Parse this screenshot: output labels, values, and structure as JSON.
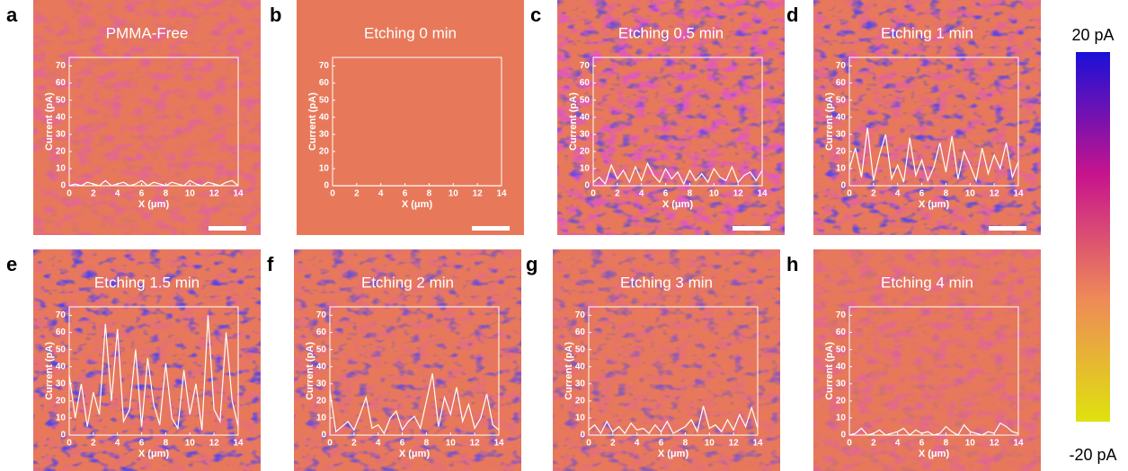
{
  "chart_data": [
    {
      "type": "line",
      "panel_label": "a",
      "title": "PMMA-Free",
      "x_label": "X (μm)",
      "y_label": "Current (pA)",
      "color": "#ffffff",
      "xlim": [
        0,
        14
      ],
      "ylim": [
        0,
        75
      ],
      "xticks": [
        0,
        2,
        4,
        6,
        8,
        10,
        12,
        14
      ],
      "yticks": [
        0,
        10,
        20,
        30,
        40,
        50,
        60,
        70
      ],
      "x": [
        0,
        0.5,
        1,
        1.5,
        2,
        2.5,
        3,
        3.5,
        4,
        4.5,
        5,
        5.5,
        6,
        6.5,
        7,
        7.5,
        8,
        8.5,
        9,
        9.5,
        10,
        10.5,
        11,
        11.5,
        12,
        12.5,
        13,
        13.5,
        14
      ],
      "values": [
        0,
        1,
        0,
        2,
        1,
        0,
        3,
        0,
        1,
        2,
        0,
        1,
        3,
        0,
        2,
        1,
        0,
        2,
        1,
        0,
        3,
        1,
        0,
        2,
        1,
        0,
        2,
        3,
        0
      ]
    },
    {
      "type": "line",
      "panel_label": "b",
      "title": "Etching 0 min",
      "x_label": "X (μm)",
      "y_label": "Current (pA)",
      "color": "#ffffff",
      "xlim": [
        0,
        14
      ],
      "ylim": [
        0,
        75
      ],
      "xticks": [
        0,
        2,
        4,
        6,
        8,
        10,
        12,
        14
      ],
      "yticks": [
        0,
        10,
        20,
        30,
        40,
        50,
        60,
        70
      ],
      "x": [
        0,
        0.5,
        1,
        1.5,
        2,
        2.5,
        3,
        3.5,
        4,
        4.5,
        5,
        5.5,
        6,
        6.5,
        7,
        7.5,
        8,
        8.5,
        9,
        9.5,
        10,
        10.5,
        11,
        11.5,
        12,
        12.5,
        13,
        13.5,
        14
      ],
      "values": [
        0,
        0,
        0,
        0,
        0,
        0,
        0,
        0,
        0,
        0,
        0,
        0,
        0,
        0,
        0,
        0,
        0,
        0,
        0,
        0,
        0,
        0,
        0,
        0,
        0,
        0,
        0,
        0,
        0
      ]
    },
    {
      "type": "line",
      "panel_label": "c",
      "title": "Etching 0.5 min",
      "x_label": "X (μm)",
      "y_label": "Current (pA)",
      "color": "#ffffff",
      "xlim": [
        0,
        14
      ],
      "ylim": [
        0,
        75
      ],
      "xticks": [
        0,
        2,
        4,
        6,
        8,
        10,
        12,
        14
      ],
      "yticks": [
        0,
        10,
        20,
        30,
        40,
        50,
        60,
        70
      ],
      "x": [
        0,
        0.5,
        1,
        1.5,
        2,
        2.5,
        3,
        3.5,
        4,
        4.5,
        5,
        5.5,
        6,
        6.5,
        7,
        7.5,
        8,
        8.5,
        9,
        9.5,
        10,
        10.5,
        11,
        11.5,
        12,
        12.5,
        13,
        13.5,
        14
      ],
      "values": [
        2,
        5,
        1,
        12,
        4,
        9,
        2,
        11,
        3,
        13,
        6,
        2,
        10,
        4,
        8,
        1,
        9,
        3,
        7,
        2,
        10,
        5,
        3,
        11,
        2,
        6,
        8,
        3,
        9
      ]
    },
    {
      "type": "line",
      "panel_label": "d",
      "title": "Etching 1 min",
      "x_label": "X (μm)",
      "y_label": "Current (pA)",
      "color": "#ffffff",
      "xlim": [
        0,
        14
      ],
      "ylim": [
        0,
        75
      ],
      "xticks": [
        0,
        2,
        4,
        6,
        8,
        10,
        12,
        14
      ],
      "yticks": [
        0,
        10,
        20,
        30,
        40,
        50,
        60,
        70
      ],
      "x": [
        0,
        0.5,
        1,
        1.5,
        2,
        2.5,
        3,
        3.5,
        4,
        4.5,
        5,
        5.5,
        6,
        6.5,
        7,
        7.5,
        8,
        8.5,
        9,
        9.5,
        10,
        10.5,
        11,
        11.5,
        12,
        12.5,
        13,
        13.5,
        14
      ],
      "values": [
        10,
        22,
        5,
        34,
        3,
        18,
        30,
        4,
        12,
        2,
        28,
        6,
        15,
        3,
        11,
        25,
        8,
        29,
        4,
        20,
        12,
        3,
        22,
        7,
        18,
        10,
        25,
        5,
        14
      ]
    },
    {
      "type": "line",
      "panel_label": "e",
      "title": "Etching 1.5 min",
      "x_label": "X (μm)",
      "y_label": "Current (pA)",
      "color": "#ffffff",
      "xlim": [
        0,
        14
      ],
      "ylim": [
        0,
        75
      ],
      "xticks": [
        0,
        2,
        4,
        6,
        8,
        10,
        12,
        14
      ],
      "yticks": [
        0,
        10,
        20,
        30,
        40,
        50,
        60,
        70
      ],
      "x": [
        0,
        0.5,
        1,
        1.5,
        2,
        2.5,
        3,
        3.5,
        4,
        4.5,
        5,
        5.5,
        6,
        6.5,
        7,
        7.5,
        8,
        8.5,
        9,
        9.5,
        10,
        10.5,
        11,
        11.5,
        12,
        12.5,
        13,
        13.5,
        14
      ],
      "values": [
        35,
        10,
        30,
        5,
        25,
        12,
        65,
        20,
        62,
        8,
        15,
        50,
        5,
        45,
        18,
        6,
        42,
        10,
        4,
        38,
        12,
        30,
        3,
        70,
        15,
        8,
        60,
        20,
        5
      ]
    },
    {
      "type": "line",
      "panel_label": "f",
      "title": "Etching 2 min",
      "x_label": "X (μm)",
      "y_label": "Current (pA)",
      "color": "#ffffff",
      "xlim": [
        0,
        14
      ],
      "ylim": [
        0,
        75
      ],
      "xticks": [
        0,
        2,
        4,
        6,
        8,
        10,
        12,
        14
      ],
      "yticks": [
        0,
        10,
        20,
        30,
        40,
        50,
        60,
        70
      ],
      "x": [
        0,
        0.5,
        1,
        1.5,
        2,
        2.5,
        3,
        3.5,
        4,
        4.5,
        5,
        5.5,
        6,
        6.5,
        7,
        7.5,
        8,
        8.5,
        9,
        9.5,
        10,
        10.5,
        11,
        11.5,
        12,
        12.5,
        13,
        13.5,
        14
      ],
      "values": [
        26,
        2,
        5,
        8,
        3,
        12,
        22,
        4,
        6,
        1,
        10,
        14,
        3,
        8,
        11,
        4,
        20,
        36,
        5,
        22,
        12,
        28,
        8,
        18,
        4,
        10,
        24,
        6,
        3
      ]
    },
    {
      "type": "line",
      "panel_label": "g",
      "title": "Etching 3 min",
      "x_label": "X (μm)",
      "y_label": "Current (pA)",
      "color": "#ffffff",
      "xlim": [
        0,
        14
      ],
      "ylim": [
        0,
        75
      ],
      "xticks": [
        0,
        2,
        4,
        6,
        8,
        10,
        12,
        14
      ],
      "yticks": [
        0,
        10,
        20,
        30,
        40,
        50,
        60,
        70
      ],
      "x": [
        0,
        0.5,
        1,
        1.5,
        2,
        2.5,
        3,
        3.5,
        4,
        4.5,
        5,
        5.5,
        6,
        6.5,
        7,
        7.5,
        8,
        8.5,
        9,
        9.5,
        10,
        10.5,
        11,
        11.5,
        12,
        12.5,
        13,
        13.5,
        14
      ],
      "values": [
        3,
        6,
        1,
        8,
        2,
        5,
        1,
        7,
        3,
        4,
        1,
        6,
        2,
        8,
        1,
        3,
        5,
        9,
        2,
        17,
        4,
        6,
        2,
        9,
        3,
        12,
        5,
        16,
        4
      ]
    },
    {
      "type": "line",
      "panel_label": "h",
      "title": "Etching 4 min",
      "x_label": "X (μm)",
      "y_label": "Current (pA)",
      "color": "#ffffff",
      "xlim": [
        0,
        14
      ],
      "ylim": [
        0,
        75
      ],
      "xticks": [
        0,
        2,
        4,
        6,
        8,
        10,
        12,
        14
      ],
      "yticks": [
        0,
        10,
        20,
        30,
        40,
        50,
        60,
        70
      ],
      "x": [
        0,
        0.5,
        1,
        1.5,
        2,
        2.5,
        3,
        3.5,
        4,
        4.5,
        5,
        5.5,
        6,
        6.5,
        7,
        7.5,
        8,
        8.5,
        9,
        9.5,
        10,
        10.5,
        11,
        11.5,
        12,
        12.5,
        13,
        13.5,
        14
      ],
      "values": [
        0,
        1,
        4,
        0,
        1,
        3,
        0,
        1,
        2,
        4,
        0,
        3,
        1,
        2,
        0,
        1,
        5,
        2,
        0,
        6,
        2,
        1,
        0,
        2,
        1,
        7,
        5,
        2,
        1
      ]
    }
  ],
  "colorbar": {
    "colors": [
      "#1a10d8",
      "#c8148c",
      "#ee8a58",
      "#dfe20e"
    ],
    "lim": [
      -20,
      20
    ],
    "ticks": [
      {
        "value": 20,
        "label": "20 pA"
      },
      {
        "value": -20,
        "label": "-20 pA"
      }
    ]
  }
}
